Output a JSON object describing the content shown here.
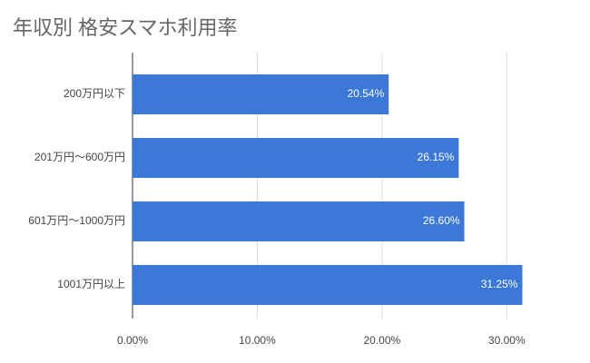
{
  "chart_data": {
    "type": "bar",
    "orientation": "horizontal",
    "title": "年収別 格安スマホ利用率",
    "categories": [
      "200万円以下",
      "201万円～600万円",
      "601万円～1000万円",
      "1001万円以上"
    ],
    "values": [
      20.54,
      26.15,
      26.6,
      31.25
    ],
    "value_labels": [
      "20.54%",
      "26.15%",
      "26.60%",
      "31.25%"
    ],
    "color": "#3c78d8",
    "xlim": [
      0,
      35
    ],
    "xticks": [
      {
        "value": 0,
        "label": "0.00%"
      },
      {
        "value": 10,
        "label": "10.00%"
      },
      {
        "value": 20,
        "label": "20.00%"
      },
      {
        "value": 30,
        "label": "30.00%"
      }
    ],
    "grid": true
  }
}
